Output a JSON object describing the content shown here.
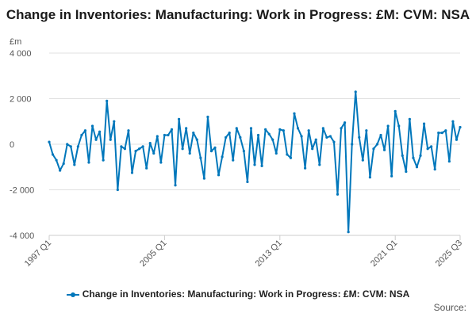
{
  "chart_data": {
    "type": "line",
    "title": "Change in Inventories: Manufacturing: Work in Progress: £M: CVM: NSA",
    "ylabel": "£m",
    "ylim": [
      -4000,
      4000
    ],
    "yticks": [
      4000,
      2000,
      0,
      -2000,
      -4000
    ],
    "ytick_labels": [
      "4 000",
      "2 000",
      "0",
      "-2 000",
      "-4 000"
    ],
    "xtick_labels": [
      "1997 Q1",
      "2005 Q1",
      "2013 Q1",
      "2021 Q1",
      "2025 Q3"
    ],
    "grid": true,
    "legend_position": "bottom",
    "color": "#0077bb",
    "series": [
      {
        "name": "Change in Inventories: Manufacturing: Work in Progress: £M: CVM: NSA",
        "x_start": "1997 Q1",
        "values": [
          100,
          -450,
          -700,
          -1150,
          -850,
          0,
          -100,
          -900,
          -100,
          400,
          600,
          -800,
          800,
          200,
          550,
          -700,
          1900,
          200,
          1000,
          -2000,
          -100,
          -200,
          600,
          -1250,
          -300,
          -200,
          -100,
          -1050,
          50,
          -400,
          350,
          -800,
          400,
          400,
          650,
          -1800,
          1100,
          -200,
          700,
          -400,
          500,
          200,
          -600,
          -1500,
          1200,
          -300,
          -150,
          -1350,
          -550,
          300,
          500,
          -700,
          700,
          300,
          -300,
          -1650,
          700,
          -900,
          400,
          -950,
          650,
          450,
          200,
          -400,
          650,
          600,
          -450,
          -600,
          1350,
          700,
          350,
          -1050,
          600,
          -200,
          200,
          -900,
          700,
          300,
          350,
          100,
          -2200,
          700,
          950,
          -3850,
          0,
          2300,
          300,
          -700,
          600,
          -1450,
          -200,
          0,
          400,
          -250,
          800,
          -1400,
          1450,
          800,
          -500,
          -1200,
          1100,
          -600,
          -1000,
          -500,
          900,
          -200,
          -100,
          -1100,
          500,
          500,
          600,
          -750,
          1000,
          200,
          750
        ]
      }
    ]
  },
  "source_label": "Source:"
}
